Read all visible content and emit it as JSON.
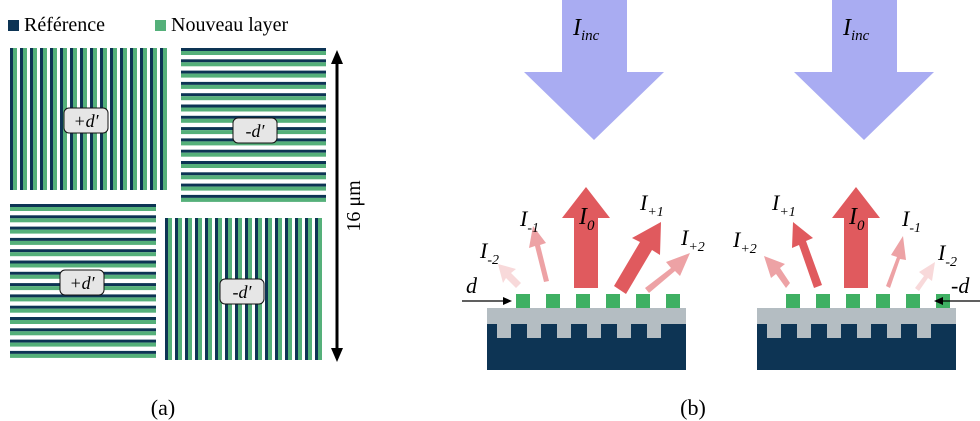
{
  "legend": {
    "reference": {
      "label": "Référence",
      "color": "#0d3454"
    },
    "new_layer": {
      "label": "Nouveau layer",
      "color": "#55b07a"
    }
  },
  "pads": {
    "top_left": "+d′",
    "top_right": "-d′",
    "bottom_left": "+d′",
    "bottom_right": "-d′"
  },
  "scale": {
    "label": "16 μm"
  },
  "panel_labels": {
    "a": "(a)",
    "b": "(b)"
  },
  "incident": {
    "base": "I",
    "sub": "inc",
    "color": "#a9acf2"
  },
  "left_diagram": {
    "orders": [
      {
        "base": "I",
        "sub": "-2"
      },
      {
        "base": "I",
        "sub": "-1"
      },
      {
        "base": "I",
        "sub": "0"
      },
      {
        "base": "I",
        "sub": "+1"
      },
      {
        "base": "I",
        "sub": "+2"
      }
    ],
    "shift_label": "d"
  },
  "right_diagram": {
    "orders": [
      {
        "base": "I",
        "sub": "+2"
      },
      {
        "base": "I",
        "sub": "+1"
      },
      {
        "base": "I",
        "sub": "0"
      },
      {
        "base": "I",
        "sub": "-1"
      },
      {
        "base": "I",
        "sub": "-2"
      }
    ],
    "shift_label": "-d"
  },
  "colors": {
    "arrow_main": "#e05a5e",
    "arrow_pale": "#eda2a5",
    "arrow_faint": "#f8d9da",
    "grating_grey": "#b4bdc2",
    "substrate": "#0d3454",
    "pad_green": "#3fb063"
  }
}
